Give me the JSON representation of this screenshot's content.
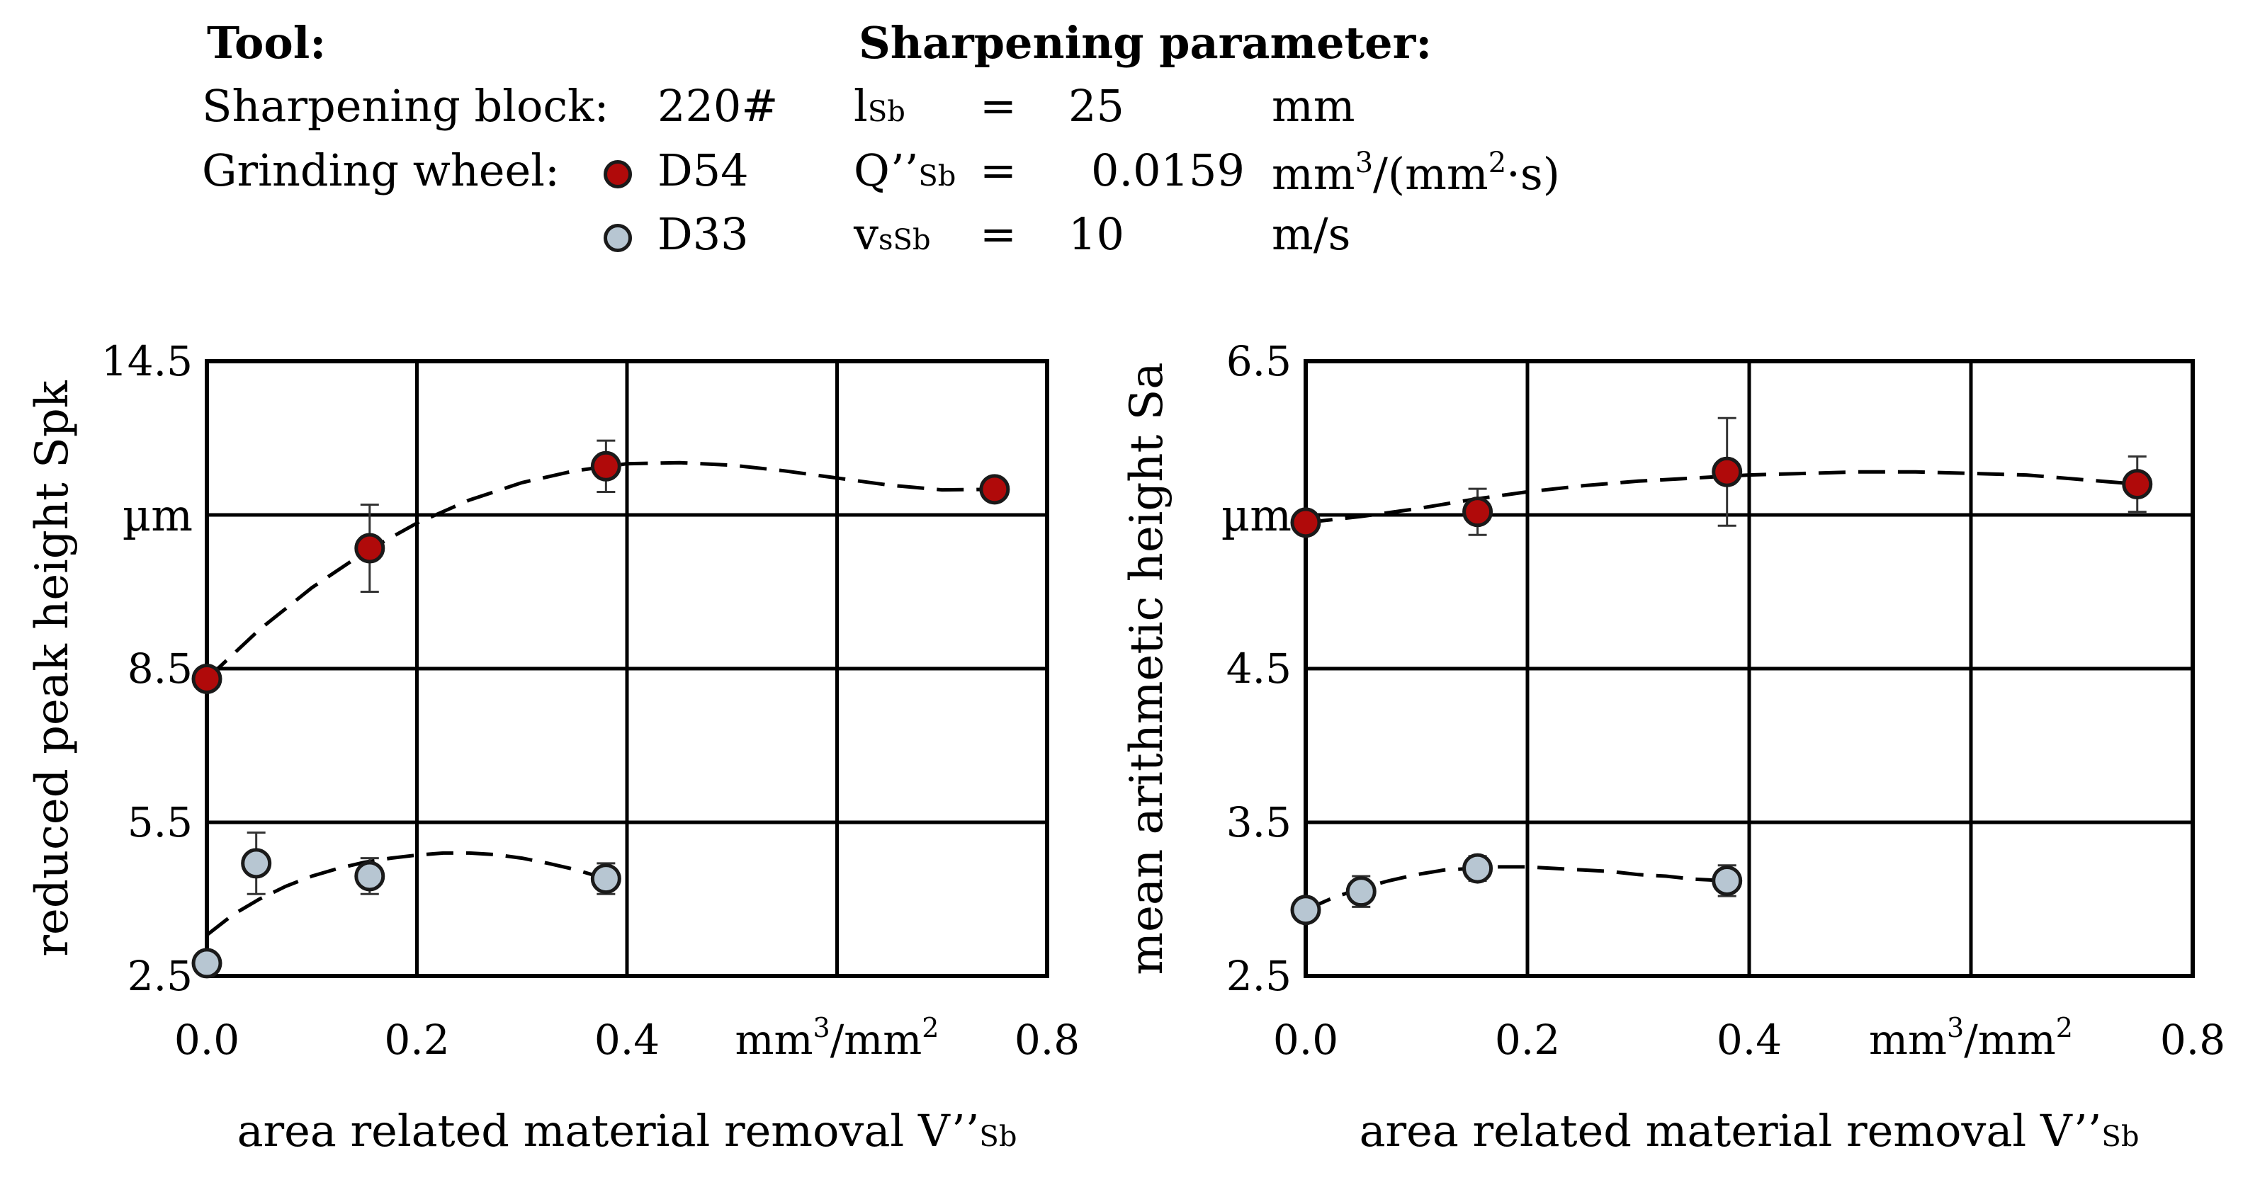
{
  "legend": {
    "tool_heading": "Tool:",
    "sharpening_block_label": "Sharpening block:",
    "sharpening_block_value": "220#",
    "grinding_wheel_label": "Grinding wheel:",
    "wheels": [
      {
        "name": "D54",
        "color": "#b00a0a"
      },
      {
        "name": "D33",
        "color": "#b7c6d2"
      }
    ]
  },
  "parameters": {
    "heading": "Sharpening parameter:",
    "rows": [
      {
        "symbol": "l",
        "subscript": "Sb",
        "eq": "=",
        "value": "25",
        "unit": "mm"
      },
      {
        "symbol": "Q’’",
        "subscript": "Sb",
        "eq": "=",
        "value": "0.0159",
        "unit_main": "mm",
        "unit_sup": "3",
        "unit_mid": "/(mm",
        "unit_sup2": "2",
        "unit_end": "·s)"
      },
      {
        "symbol": "v",
        "subscript": "sSb",
        "eq": "=",
        "value": "10",
        "unit": "m/s"
      }
    ]
  },
  "chart_data": [
    {
      "type": "scatter",
      "title": "",
      "ylabel": "reduced peak height Spk",
      "yunit": "µm",
      "xlabel_main": "area related material removal V’’",
      "xlabel_sub": "Sb",
      "xunit_main": "mm",
      "xunit_sup": "3",
      "xunit_end": "/mm",
      "xunit_sup2": "2",
      "xlim": [
        0,
        0.8
      ],
      "ylim": [
        2.5,
        14.5
      ],
      "xticks": [
        "0.0",
        "0.2",
        "0.4",
        "",
        "0.8"
      ],
      "yticks": [
        "2.5",
        "5.5",
        "8.5",
        "",
        "14.5"
      ],
      "grid": true,
      "series": [
        {
          "name": "D54",
          "color": "#b00a0a",
          "points": [
            {
              "x": 0.0,
              "y": 8.3,
              "err": 0
            },
            {
              "x": 0.155,
              "y": 10.85,
              "err": 0.85
            },
            {
              "x": 0.38,
              "y": 12.45,
              "err": 0.5
            },
            {
              "x": 0.75,
              "y": 12.0,
              "err": 0
            }
          ],
          "trend_x": [
            0.0,
            0.05,
            0.1,
            0.15,
            0.2,
            0.25,
            0.3,
            0.35,
            0.4,
            0.45,
            0.5,
            0.55,
            0.6,
            0.65,
            0.7,
            0.75
          ],
          "trend_y": [
            8.3,
            9.26,
            10.08,
            10.77,
            11.34,
            11.79,
            12.13,
            12.36,
            12.5,
            12.52,
            12.47,
            12.36,
            12.22,
            12.08,
            11.99,
            12.0
          ]
        },
        {
          "name": "D33",
          "color": "#b7c6d2",
          "points": [
            {
              "x": 0.0,
              "y": 2.75,
              "err": 0
            },
            {
              "x": 0.047,
              "y": 4.7,
              "err": 0.6
            },
            {
              "x": 0.155,
              "y": 4.45,
              "err": 0.35
            },
            {
              "x": 0.38,
              "y": 4.4,
              "err": 0.3
            }
          ],
          "trend_x": [
            0.0,
            0.025,
            0.05,
            0.075,
            0.1,
            0.125,
            0.15,
            0.175,
            0.2,
            0.225,
            0.25,
            0.275,
            0.3,
            0.325,
            0.35,
            0.38
          ],
          "trend_y": [
            3.3,
            3.7,
            4.0,
            4.25,
            4.45,
            4.6,
            4.72,
            4.8,
            4.86,
            4.9,
            4.9,
            4.87,
            4.8,
            4.7,
            4.58,
            4.4
          ]
        }
      ]
    },
    {
      "type": "scatter",
      "title": "",
      "ylabel": "mean arithmetic height Sa",
      "yunit": "µm",
      "xlabel_main": "area related material removal V’’",
      "xlabel_sub": "Sb",
      "xunit_main": "mm",
      "xunit_sup": "3",
      "xunit_end": "/mm",
      "xunit_sup2": "2",
      "xlim": [
        0,
        0.8
      ],
      "ylim": [
        2.5,
        6.5
      ],
      "xticks": [
        "0.0",
        "0.2",
        "0.4",
        "",
        "0.8"
      ],
      "yticks": [
        "2.5",
        "3.5",
        "4.5",
        "",
        "6.5"
      ],
      "grid": true,
      "series": [
        {
          "name": "D54",
          "color": "#b00a0a",
          "points": [
            {
              "x": 0.0,
              "y": 5.45,
              "err": 0
            },
            {
              "x": 0.155,
              "y": 5.52,
              "err": 0.15
            },
            {
              "x": 0.38,
              "y": 5.78,
              "err": 0.35
            },
            {
              "x": 0.75,
              "y": 5.7,
              "err": 0.18
            }
          ],
          "trend_x": [
            0.0,
            0.05,
            0.1,
            0.15,
            0.2,
            0.25,
            0.3,
            0.35,
            0.4,
            0.45,
            0.5,
            0.55,
            0.6,
            0.65,
            0.7,
            0.75
          ],
          "trend_y": [
            5.45,
            5.49,
            5.54,
            5.6,
            5.65,
            5.69,
            5.72,
            5.74,
            5.76,
            5.77,
            5.78,
            5.78,
            5.77,
            5.76,
            5.73,
            5.7
          ]
        },
        {
          "name": "D33",
          "color": "#b7c6d2",
          "points": [
            {
              "x": 0.0,
              "y": 2.93,
              "err": 0
            },
            {
              "x": 0.05,
              "y": 3.05,
              "err": 0.1
            },
            {
              "x": 0.155,
              "y": 3.2,
              "err": 0.08
            },
            {
              "x": 0.38,
              "y": 3.12,
              "err": 0.1
            }
          ],
          "trend_x": [
            0.0,
            0.025,
            0.05,
            0.075,
            0.1,
            0.125,
            0.15,
            0.175,
            0.2,
            0.225,
            0.25,
            0.275,
            0.3,
            0.325,
            0.35,
            0.38
          ],
          "trend_y": [
            2.93,
            3.01,
            3.07,
            3.12,
            3.16,
            3.19,
            3.2,
            3.21,
            3.21,
            3.2,
            3.19,
            3.18,
            3.16,
            3.15,
            3.13,
            3.12
          ]
        }
      ]
    }
  ]
}
